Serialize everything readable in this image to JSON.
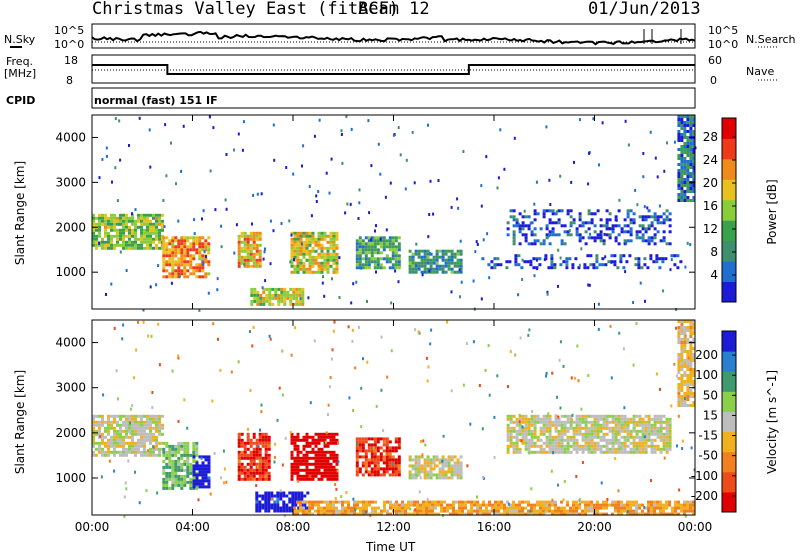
{
  "header": {
    "station": "Christmas Valley East (fitACF)",
    "beam": "Beam 12",
    "date": "01/Jun/2013"
  },
  "noise_panel": {
    "left_label": "N.Sky",
    "right_label": "N.Search",
    "tick_top_left": "10^5",
    "tick_bottom_left": "10^0",
    "tick_top_right": "10^5",
    "tick_bottom_right": "10^0"
  },
  "freq_panel": {
    "left_label_line1": "Freq.",
    "left_label_line2": "[MHz]",
    "left_tick_top": "18",
    "left_tick_bottom": "8",
    "right_label": "Nave",
    "right_tick_top": "60",
    "right_tick_bottom": "0",
    "cpid_label": "CPID",
    "program_name": "normal (fast) 151 IF"
  },
  "colors": {
    "power_scale": [
      "#1b1bd8",
      "#1f6fd0",
      "#3f8f6f",
      "#3aa24a",
      "#8acd3a",
      "#e8c020",
      "#f08a1a",
      "#ee3a1a",
      "#e00000"
    ],
    "velocity_scale": [
      "#1b1bd8",
      "#2a7fd0",
      "#3f9a6f",
      "#8ad04a",
      "#bdbdbd",
      "#f0b020",
      "#f08020",
      "#ee4a1a",
      "#e00000"
    ]
  },
  "chart_data": [
    {
      "type": "heatmap",
      "name": "power",
      "ylabel": "Slant Range [km]",
      "xlabel": "Time UT",
      "x_ticks": [
        "00:00",
        "04:00",
        "08:00",
        "12:00",
        "16:00",
        "20:00",
        "00:00"
      ],
      "xlim_hours": [
        0,
        24
      ],
      "y_ticks": [
        1000,
        2000,
        3000,
        4000
      ],
      "ylim_km": [
        180,
        4500
      ],
      "colorbar_label": "Power [dB]",
      "colorbar_ticks": [
        "4",
        "8",
        "12",
        "16",
        "20",
        "24",
        "28"
      ],
      "regions": [
        {
          "t0": 0.0,
          "t1": 2.8,
          "r0": 1500,
          "r1": 2300,
          "v": 16
        },
        {
          "t0": 2.8,
          "t1": 4.6,
          "r0": 900,
          "r1": 1800,
          "v": 22
        },
        {
          "t0": 5.8,
          "t1": 6.7,
          "r0": 1100,
          "r1": 1900,
          "v": 20
        },
        {
          "t0": 6.3,
          "t1": 8.4,
          "r0": 300,
          "r1": 650,
          "v": 18
        },
        {
          "t0": 7.9,
          "t1": 9.8,
          "r0": 1000,
          "r1": 1900,
          "v": 18
        },
        {
          "t0": 10.5,
          "t1": 12.2,
          "r0": 1100,
          "r1": 1800,
          "v": 12
        },
        {
          "t0": 12.6,
          "t1": 14.7,
          "r0": 1000,
          "r1": 1500,
          "v": 10
        },
        {
          "t0": 16.5,
          "t1": 23.0,
          "r0": 1600,
          "r1": 2400,
          "v": 5
        },
        {
          "t0": 15.5,
          "t1": 23.5,
          "r0": 1100,
          "r1": 1400,
          "v": 5
        },
        {
          "t0": 23.3,
          "t1": 24.0,
          "r0": 2600,
          "r1": 4500,
          "v": 8
        }
      ]
    },
    {
      "type": "heatmap",
      "name": "velocity",
      "ylabel": "Slant Range [km]",
      "xlabel": "Time UT",
      "x_ticks": [
        "00:00",
        "04:00",
        "08:00",
        "12:00",
        "16:00",
        "20:00",
        "00:00"
      ],
      "xlim_hours": [
        0,
        24
      ],
      "y_ticks": [
        1000,
        2000,
        3000,
        4000
      ],
      "ylim_km": [
        180,
        4500
      ],
      "colorbar_label": "Velocity [m s^-1]",
      "colorbar_ticks": [
        "200",
        "100",
        "50",
        "15",
        "-15",
        "-50",
        "-100",
        "-200"
      ],
      "regions": [
        {
          "t0": 0.0,
          "t1": 2.8,
          "r0": 1500,
          "r1": 2400,
          "v": 0
        },
        {
          "t0": 2.8,
          "t1": 4.2,
          "r0": 800,
          "r1": 1800,
          "v": 60
        },
        {
          "t0": 4.0,
          "t1": 4.6,
          "r0": 800,
          "r1": 1500,
          "v": 200
        },
        {
          "t0": 5.8,
          "t1": 7.0,
          "r0": 1000,
          "r1": 2000,
          "v": -150
        },
        {
          "t0": 6.5,
          "t1": 8.6,
          "r0": 300,
          "r1": 700,
          "v": 200
        },
        {
          "t0": 7.9,
          "t1": 9.8,
          "r0": 1000,
          "r1": 2000,
          "v": -200
        },
        {
          "t0": 10.5,
          "t1": 12.2,
          "r0": 1100,
          "r1": 1900,
          "v": -150
        },
        {
          "t0": 12.6,
          "t1": 14.7,
          "r0": 1000,
          "r1": 1500,
          "v": 0
        },
        {
          "t0": 8.0,
          "t1": 24.0,
          "r0": 200,
          "r1": 500,
          "v": -60
        },
        {
          "t0": 16.5,
          "t1": 23.0,
          "r0": 1600,
          "r1": 2400,
          "v": 0
        },
        {
          "t0": 23.3,
          "t1": 24.0,
          "r0": 2600,
          "r1": 4500,
          "v": -30
        }
      ]
    }
  ]
}
